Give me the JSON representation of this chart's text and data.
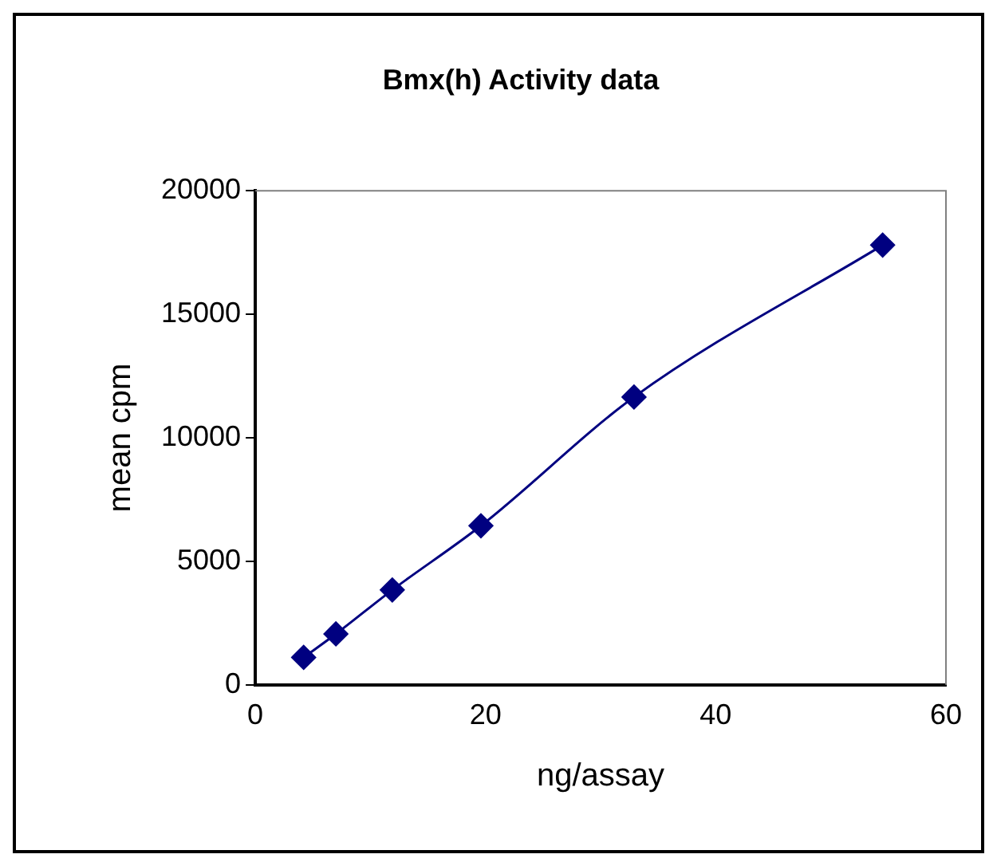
{
  "chart_data": {
    "type": "line",
    "title": "Bmx(h) Activity data",
    "xlabel": "ng/assay",
    "ylabel": "mean cpm",
    "series": [
      {
        "color": "#000080",
        "x": [
          4.2,
          7.0,
          11.9,
          19.6,
          32.9,
          54.5
        ],
        "values": [
          1110,
          2060,
          3840,
          6440,
          11650,
          17800
        ]
      }
    ],
    "xlim": [
      0,
      60
    ],
    "xticks": [
      0,
      20,
      40,
      60
    ],
    "ylim": [
      0,
      20000
    ],
    "yticks": [
      0,
      5000,
      10000,
      15000,
      20000
    ],
    "grid": false,
    "legend": false,
    "marker": "diamond",
    "line_style": "solid"
  }
}
